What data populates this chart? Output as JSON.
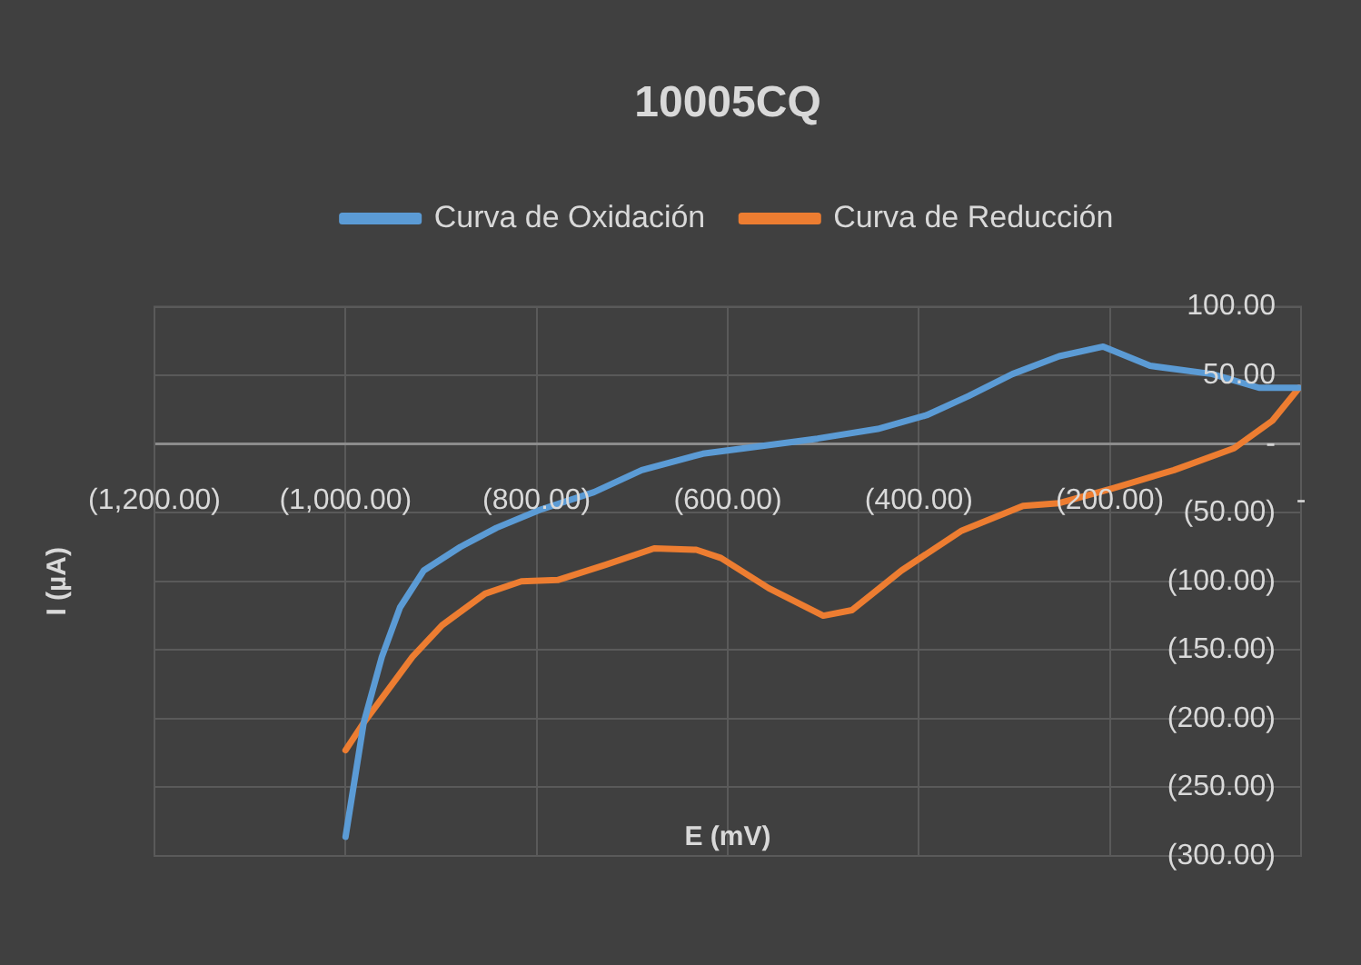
{
  "chart_data": {
    "type": "line",
    "title": "10005CQ",
    "xlabel": "E (mV)",
    "ylabel": "I (µA)",
    "series": [
      {
        "name": "Curva de Oxidación",
        "color": "#5b9bd5",
        "x": [
          -1000,
          -981,
          -962,
          -943,
          -918,
          -880,
          -842,
          -797,
          -740,
          -690,
          -626,
          -582,
          -506,
          -443,
          -392,
          -348,
          -302,
          -253,
          -207,
          -158,
          -93,
          -44,
          -2
        ],
        "values": [
          -286,
          -203,
          -155,
          -119,
          -92,
          -75,
          -61,
          -48,
          -35,
          -19,
          -7,
          -3,
          4,
          11,
          21,
          35,
          51,
          64,
          71,
          57,
          51,
          41,
          41
        ]
      },
      {
        "name": "Curva de Reducción",
        "color": "#ed7d31",
        "x": [
          -1000,
          -981,
          -930,
          -899,
          -854,
          -816,
          -778,
          -728,
          -677,
          -633,
          -607,
          -557,
          -500,
          -470,
          -418,
          -355,
          -291,
          -253,
          -196,
          -133,
          -70,
          -30,
          -2
        ],
        "values": [
          -223,
          -203,
          -155,
          -132,
          -109,
          -100,
          -99,
          -88,
          -76,
          -77,
          -83,
          -105,
          -125,
          -121,
          -92,
          -63,
          -45,
          -43,
          -32,
          -19,
          -3,
          17,
          41
        ]
      }
    ],
    "xlim": [
      -1200,
      0
    ],
    "xticks": [
      {
        "value": -1200,
        "label": "(1,200.00)"
      },
      {
        "value": -1000,
        "label": "(1,000.00)"
      },
      {
        "value": -800,
        "label": "(800.00)"
      },
      {
        "value": -600,
        "label": "(600.00)"
      },
      {
        "value": -400,
        "label": "(400.00)"
      },
      {
        "value": -200,
        "label": "(200.00)"
      },
      {
        "value": 0,
        "label": "-"
      }
    ],
    "ylim": [
      -300,
      100
    ],
    "yticks": [
      {
        "value": -300,
        "label": "(300.00)"
      },
      {
        "value": -250,
        "label": "(250.00)"
      },
      {
        "value": -200,
        "label": "(200.00)"
      },
      {
        "value": -150,
        "label": "(150.00)"
      },
      {
        "value": -100,
        "label": "(100.00)"
      },
      {
        "value": -50,
        "label": "(50.00)"
      },
      {
        "value": 0,
        "label": "-"
      },
      {
        "value": 50,
        "label": "50.00"
      },
      {
        "value": 100,
        "label": "100.00"
      }
    ],
    "grid": true,
    "legend": "top",
    "marker": "none",
    "line_style": "solid"
  }
}
